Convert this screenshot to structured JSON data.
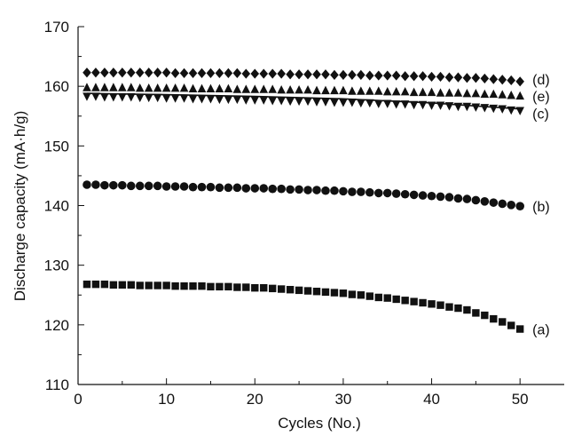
{
  "chart_data": {
    "type": "scatter",
    "xlabel": "Cycles (No.)",
    "ylabel": "Discharge capacity (mA·h/g)",
    "xlim": [
      0,
      55
    ],
    "ylim": [
      110,
      170
    ],
    "xticks": [
      0,
      10,
      20,
      30,
      40,
      50
    ],
    "yticks": [
      110,
      120,
      130,
      140,
      150,
      160,
      170
    ],
    "grid": false,
    "series": [
      {
        "name": "(a)",
        "marker": "square",
        "color": "#111111",
        "x": [
          1,
          2,
          3,
          4,
          5,
          6,
          7,
          8,
          9,
          10,
          11,
          12,
          13,
          14,
          15,
          16,
          17,
          18,
          19,
          20,
          21,
          22,
          23,
          24,
          25,
          26,
          27,
          28,
          29,
          30,
          31,
          32,
          33,
          34,
          35,
          36,
          37,
          38,
          39,
          40,
          41,
          42,
          43,
          44,
          45,
          46,
          47,
          48,
          49,
          50
        ],
        "y": [
          126.8,
          126.8,
          126.8,
          126.7,
          126.7,
          126.7,
          126.6,
          126.6,
          126.6,
          126.6,
          126.5,
          126.5,
          126.5,
          126.5,
          126.4,
          126.4,
          126.4,
          126.3,
          126.3,
          126.2,
          126.2,
          126.1,
          126.0,
          125.9,
          125.8,
          125.7,
          125.6,
          125.5,
          125.4,
          125.3,
          125.1,
          125.0,
          124.8,
          124.6,
          124.5,
          124.3,
          124.1,
          123.9,
          123.7,
          123.5,
          123.3,
          123.0,
          122.8,
          122.5,
          122.0,
          121.6,
          121.0,
          120.5,
          119.9,
          119.3
        ]
      },
      {
        "name": "(b)",
        "marker": "circle",
        "color": "#111111",
        "x": [
          1,
          2,
          3,
          4,
          5,
          6,
          7,
          8,
          9,
          10,
          11,
          12,
          13,
          14,
          15,
          16,
          17,
          18,
          19,
          20,
          21,
          22,
          23,
          24,
          25,
          26,
          27,
          28,
          29,
          30,
          31,
          32,
          33,
          34,
          35,
          36,
          37,
          38,
          39,
          40,
          41,
          42,
          43,
          44,
          45,
          46,
          47,
          48,
          49,
          50
        ],
        "y": [
          143.5,
          143.5,
          143.4,
          143.4,
          143.4,
          143.3,
          143.3,
          143.3,
          143.3,
          143.2,
          143.2,
          143.2,
          143.1,
          143.1,
          143.1,
          143.0,
          143.0,
          143.0,
          142.9,
          142.9,
          142.9,
          142.8,
          142.8,
          142.7,
          142.7,
          142.6,
          142.6,
          142.5,
          142.5,
          142.4,
          142.3,
          142.3,
          142.2,
          142.1,
          142.1,
          142.0,
          141.9,
          141.8,
          141.7,
          141.6,
          141.5,
          141.4,
          141.2,
          141.1,
          140.9,
          140.7,
          140.5,
          140.3,
          140.1,
          139.9
        ]
      },
      {
        "name": "(c)",
        "marker": "triangle-down",
        "color": "#111111",
        "x": [
          1,
          2,
          3,
          4,
          5,
          6,
          7,
          8,
          9,
          10,
          11,
          12,
          13,
          14,
          15,
          16,
          17,
          18,
          19,
          20,
          21,
          22,
          23,
          24,
          25,
          26,
          27,
          28,
          29,
          30,
          31,
          32,
          33,
          34,
          35,
          36,
          37,
          38,
          39,
          40,
          41,
          42,
          43,
          44,
          45,
          46,
          47,
          48,
          49,
          50
        ],
        "y": [
          158.3,
          158.3,
          158.2,
          158.2,
          158.2,
          158.2,
          158.1,
          158.1,
          158.1,
          158.0,
          158.0,
          158.0,
          157.9,
          157.9,
          157.9,
          157.8,
          157.8,
          157.8,
          157.7,
          157.7,
          157.7,
          157.6,
          157.6,
          157.5,
          157.5,
          157.5,
          157.4,
          157.4,
          157.3,
          157.3,
          157.3,
          157.2,
          157.2,
          157.1,
          157.1,
          157.0,
          157.0,
          156.9,
          156.9,
          156.8,
          156.8,
          156.7,
          156.6,
          156.6,
          156.5,
          156.4,
          156.3,
          156.2,
          156.0,
          155.9
        ]
      },
      {
        "name": "(e)",
        "marker": "triangle-up",
        "color": "#111111",
        "x": [
          1,
          2,
          3,
          4,
          5,
          6,
          7,
          8,
          9,
          10,
          11,
          12,
          13,
          14,
          15,
          16,
          17,
          18,
          19,
          20,
          21,
          22,
          23,
          24,
          25,
          26,
          27,
          28,
          29,
          30,
          31,
          32,
          33,
          34,
          35,
          36,
          37,
          38,
          39,
          40,
          41,
          42,
          43,
          44,
          45,
          46,
          47,
          48,
          49,
          50
        ],
        "y": [
          159.8,
          159.8,
          159.8,
          159.8,
          159.8,
          159.8,
          159.7,
          159.7,
          159.7,
          159.7,
          159.7,
          159.7,
          159.6,
          159.6,
          159.6,
          159.6,
          159.6,
          159.5,
          159.5,
          159.5,
          159.5,
          159.5,
          159.4,
          159.4,
          159.4,
          159.4,
          159.3,
          159.3,
          159.3,
          159.3,
          159.2,
          159.2,
          159.2,
          159.2,
          159.1,
          159.1,
          159.1,
          159.0,
          159.0,
          159.0,
          158.9,
          158.9,
          158.9,
          158.8,
          158.8,
          158.7,
          158.7,
          158.6,
          158.5,
          158.4
        ]
      },
      {
        "name": "(d)",
        "marker": "diamond",
        "color": "#111111",
        "x": [
          1,
          2,
          3,
          4,
          5,
          6,
          7,
          8,
          9,
          10,
          11,
          12,
          13,
          14,
          15,
          16,
          17,
          18,
          19,
          20,
          21,
          22,
          23,
          24,
          25,
          26,
          27,
          28,
          29,
          30,
          31,
          32,
          33,
          34,
          35,
          36,
          37,
          38,
          39,
          40,
          41,
          42,
          43,
          44,
          45,
          46,
          47,
          48,
          49,
          50
        ],
        "y": [
          162.3,
          162.3,
          162.3,
          162.3,
          162.3,
          162.3,
          162.3,
          162.3,
          162.3,
          162.3,
          162.2,
          162.2,
          162.2,
          162.2,
          162.2,
          162.2,
          162.2,
          162.2,
          162.1,
          162.1,
          162.1,
          162.1,
          162.1,
          162.0,
          162.0,
          162.0,
          162.0,
          162.0,
          161.9,
          161.9,
          161.9,
          161.9,
          161.8,
          161.8,
          161.8,
          161.8,
          161.7,
          161.7,
          161.7,
          161.6,
          161.6,
          161.5,
          161.5,
          161.4,
          161.4,
          161.3,
          161.2,
          161.1,
          161.0,
          160.8
        ]
      }
    ],
    "fit_curve": {
      "series": "(c)",
      "x": [
        1,
        10,
        20,
        30,
        40,
        50
      ],
      "y": [
        158.8,
        158.6,
        158.3,
        157.9,
        157.2,
        156.2
      ]
    }
  }
}
